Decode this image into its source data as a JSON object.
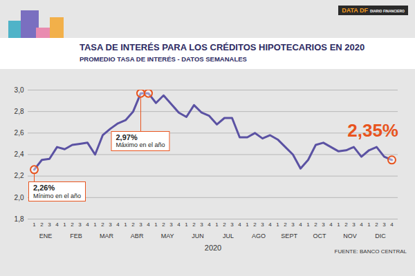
{
  "chart_data": {
    "type": "line",
    "title": "TASA DE INTERÉS PARA LOS CRÉDITOS HIPOTECARIOS EN 2020",
    "subtitle": "PROMEDIO TASA DE INTERÉS - DATOS SEMANALES",
    "logo": [
      "DATA DF",
      "DIARIO FINANCIERO"
    ],
    "source": "FUENTE: BANCO CENTRAL",
    "x_label": "2020",
    "categories": [
      "1",
      "2",
      "3",
      "4",
      "1",
      "2",
      "3",
      "4",
      "1",
      "2",
      "3",
      "4",
      "1",
      "2",
      "3",
      "4",
      "1",
      "2",
      "3",
      "4",
      "1",
      "2",
      "3",
      "4",
      "1",
      "2",
      "3",
      "4",
      "1",
      "2",
      "3",
      "4",
      "1",
      "2",
      "3",
      "4",
      "1",
      "2",
      "3",
      "4",
      "1",
      "2",
      "3",
      "4",
      "1",
      "2",
      "3",
      "4"
    ],
    "month_labels": [
      "ENE",
      "FEB",
      "MAR",
      "ABR",
      "MAY",
      "JUN",
      "JUL",
      "AGO",
      "SEPT",
      "OCT",
      "NOV",
      "DIC"
    ],
    "values": [
      2.26,
      2.35,
      2.36,
      2.47,
      2.45,
      2.49,
      2.5,
      2.51,
      2.4,
      2.58,
      2.64,
      2.69,
      2.72,
      2.8,
      2.97,
      2.97,
      2.88,
      2.95,
      2.87,
      2.79,
      2.75,
      2.86,
      2.79,
      2.76,
      2.68,
      2.74,
      2.74,
      2.56,
      2.56,
      2.6,
      2.55,
      2.58,
      2.54,
      2.47,
      2.4,
      2.27,
      2.35,
      2.49,
      2.51,
      2.47,
      2.43,
      2.44,
      2.47,
      2.38,
      2.44,
      2.47,
      2.38,
      2.35
    ],
    "color": "#5b52a3",
    "ylim": [
      1.8,
      3.0
    ],
    "yticks": [
      {
        "value": 1.8,
        "label": "1,8"
      },
      {
        "value": 2.0,
        "label": "2,0"
      },
      {
        "value": 2.2,
        "label": "2,2"
      },
      {
        "value": 2.4,
        "label": "2,4"
      },
      {
        "value": 2.6,
        "label": "2,6"
      },
      {
        "value": 2.8,
        "label": "2,8"
      },
      {
        "value": 3.0,
        "label": "3,0"
      }
    ],
    "grid": true,
    "annotations": [
      {
        "indices": [
          0
        ],
        "value": 2.26,
        "label": "2,26%",
        "text": "Mínimo en el año",
        "color": "#e8541e"
      },
      {
        "indices": [
          14,
          15
        ],
        "value": 2.97,
        "label": "2,97%",
        "text": "Máximo en el año",
        "color": "#e8541e"
      },
      {
        "indices": [
          47
        ],
        "value": 2.35,
        "label": "2,35%",
        "color": "#e8541e"
      }
    ]
  }
}
